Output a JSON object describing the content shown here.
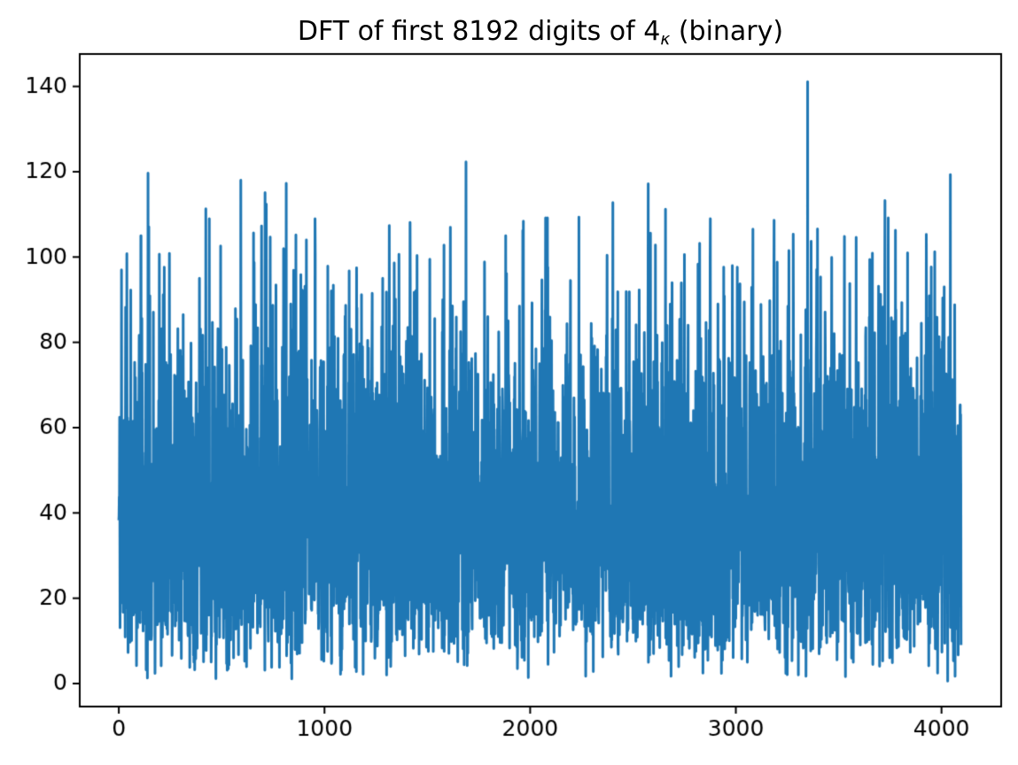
{
  "title": {
    "prefix": "DFT of first 8192 digits of 4",
    "subscript": "κ",
    "suffix": " (binary)"
  },
  "chart_data": {
    "type": "line",
    "title": "DFT of first 8192 digits of 4_κ (binary)",
    "xlabel": "",
    "ylabel": "",
    "legend": null,
    "grid": false,
    "background": "#ffffff",
    "line_color": "#1f77b4",
    "axis_color": "#000000",
    "n_points": 4096,
    "x_start": 0,
    "xlim": [
      -190,
      4290
    ],
    "ylim": [
      -5.4,
      147.6
    ],
    "x_ticks": [
      0,
      1000,
      2000,
      3000,
      4000
    ],
    "y_ticks": [
      0,
      20,
      40,
      60,
      80,
      100,
      120,
      140
    ],
    "y_band": {
      "description": "dense noise band of FFT magnitudes",
      "dense_min": 18,
      "dense_max": 62,
      "floor_min": 1,
      "max_value": 141
    },
    "noise_model": {
      "distribution": "rayleigh",
      "sigma": 32,
      "seed": 11,
      "soft_knee": 105,
      "soft_factor": 0.35
    },
    "peaks": [
      [
        13,
        97
      ],
      [
        39,
        100.8
      ],
      [
        108,
        105
      ],
      [
        142,
        119.7
      ],
      [
        197,
        100.7
      ],
      [
        392,
        95
      ],
      [
        423,
        111.3
      ],
      [
        440,
        109
      ],
      [
        495,
        102.6
      ],
      [
        593,
        118
      ],
      [
        658,
        98.7
      ],
      [
        711,
        115.1
      ],
      [
        814,
        117.3
      ],
      [
        861,
        105.2
      ],
      [
        912,
        104
      ],
      [
        955,
        100.8
      ],
      [
        1016,
        97.9
      ],
      [
        1180,
        91.2
      ],
      [
        1232,
        91.5
      ],
      [
        1283,
        95
      ],
      [
        1339,
        98.6
      ],
      [
        1416,
        108.1
      ],
      [
        1575,
        90
      ],
      [
        1688,
        122.3
      ],
      [
        1881,
        105
      ],
      [
        1967,
        108.4
      ],
      [
        2075,
        109.2
      ],
      [
        2196,
        94.5
      ],
      [
        2402,
        112.8
      ],
      [
        2574,
        117.2
      ],
      [
        2609,
        102.8
      ],
      [
        2750,
        100.6
      ],
      [
        2824,
        103.2
      ],
      [
        2875,
        99.8
      ],
      [
        2983,
        98
      ],
      [
        3186,
        108.6
      ],
      [
        3258,
        101.5
      ],
      [
        3349,
        141.1
      ],
      [
        3366,
        103.7
      ],
      [
        3466,
        99.9
      ],
      [
        3664,
        100.9
      ],
      [
        3741,
        109.2
      ],
      [
        3835,
        101
      ],
      [
        3926,
        105.3
      ],
      [
        4013,
        93
      ],
      [
        4043,
        119.3
      ],
      [
        4064,
        88.8
      ],
      [
        4090,
        65
      ]
    ]
  }
}
